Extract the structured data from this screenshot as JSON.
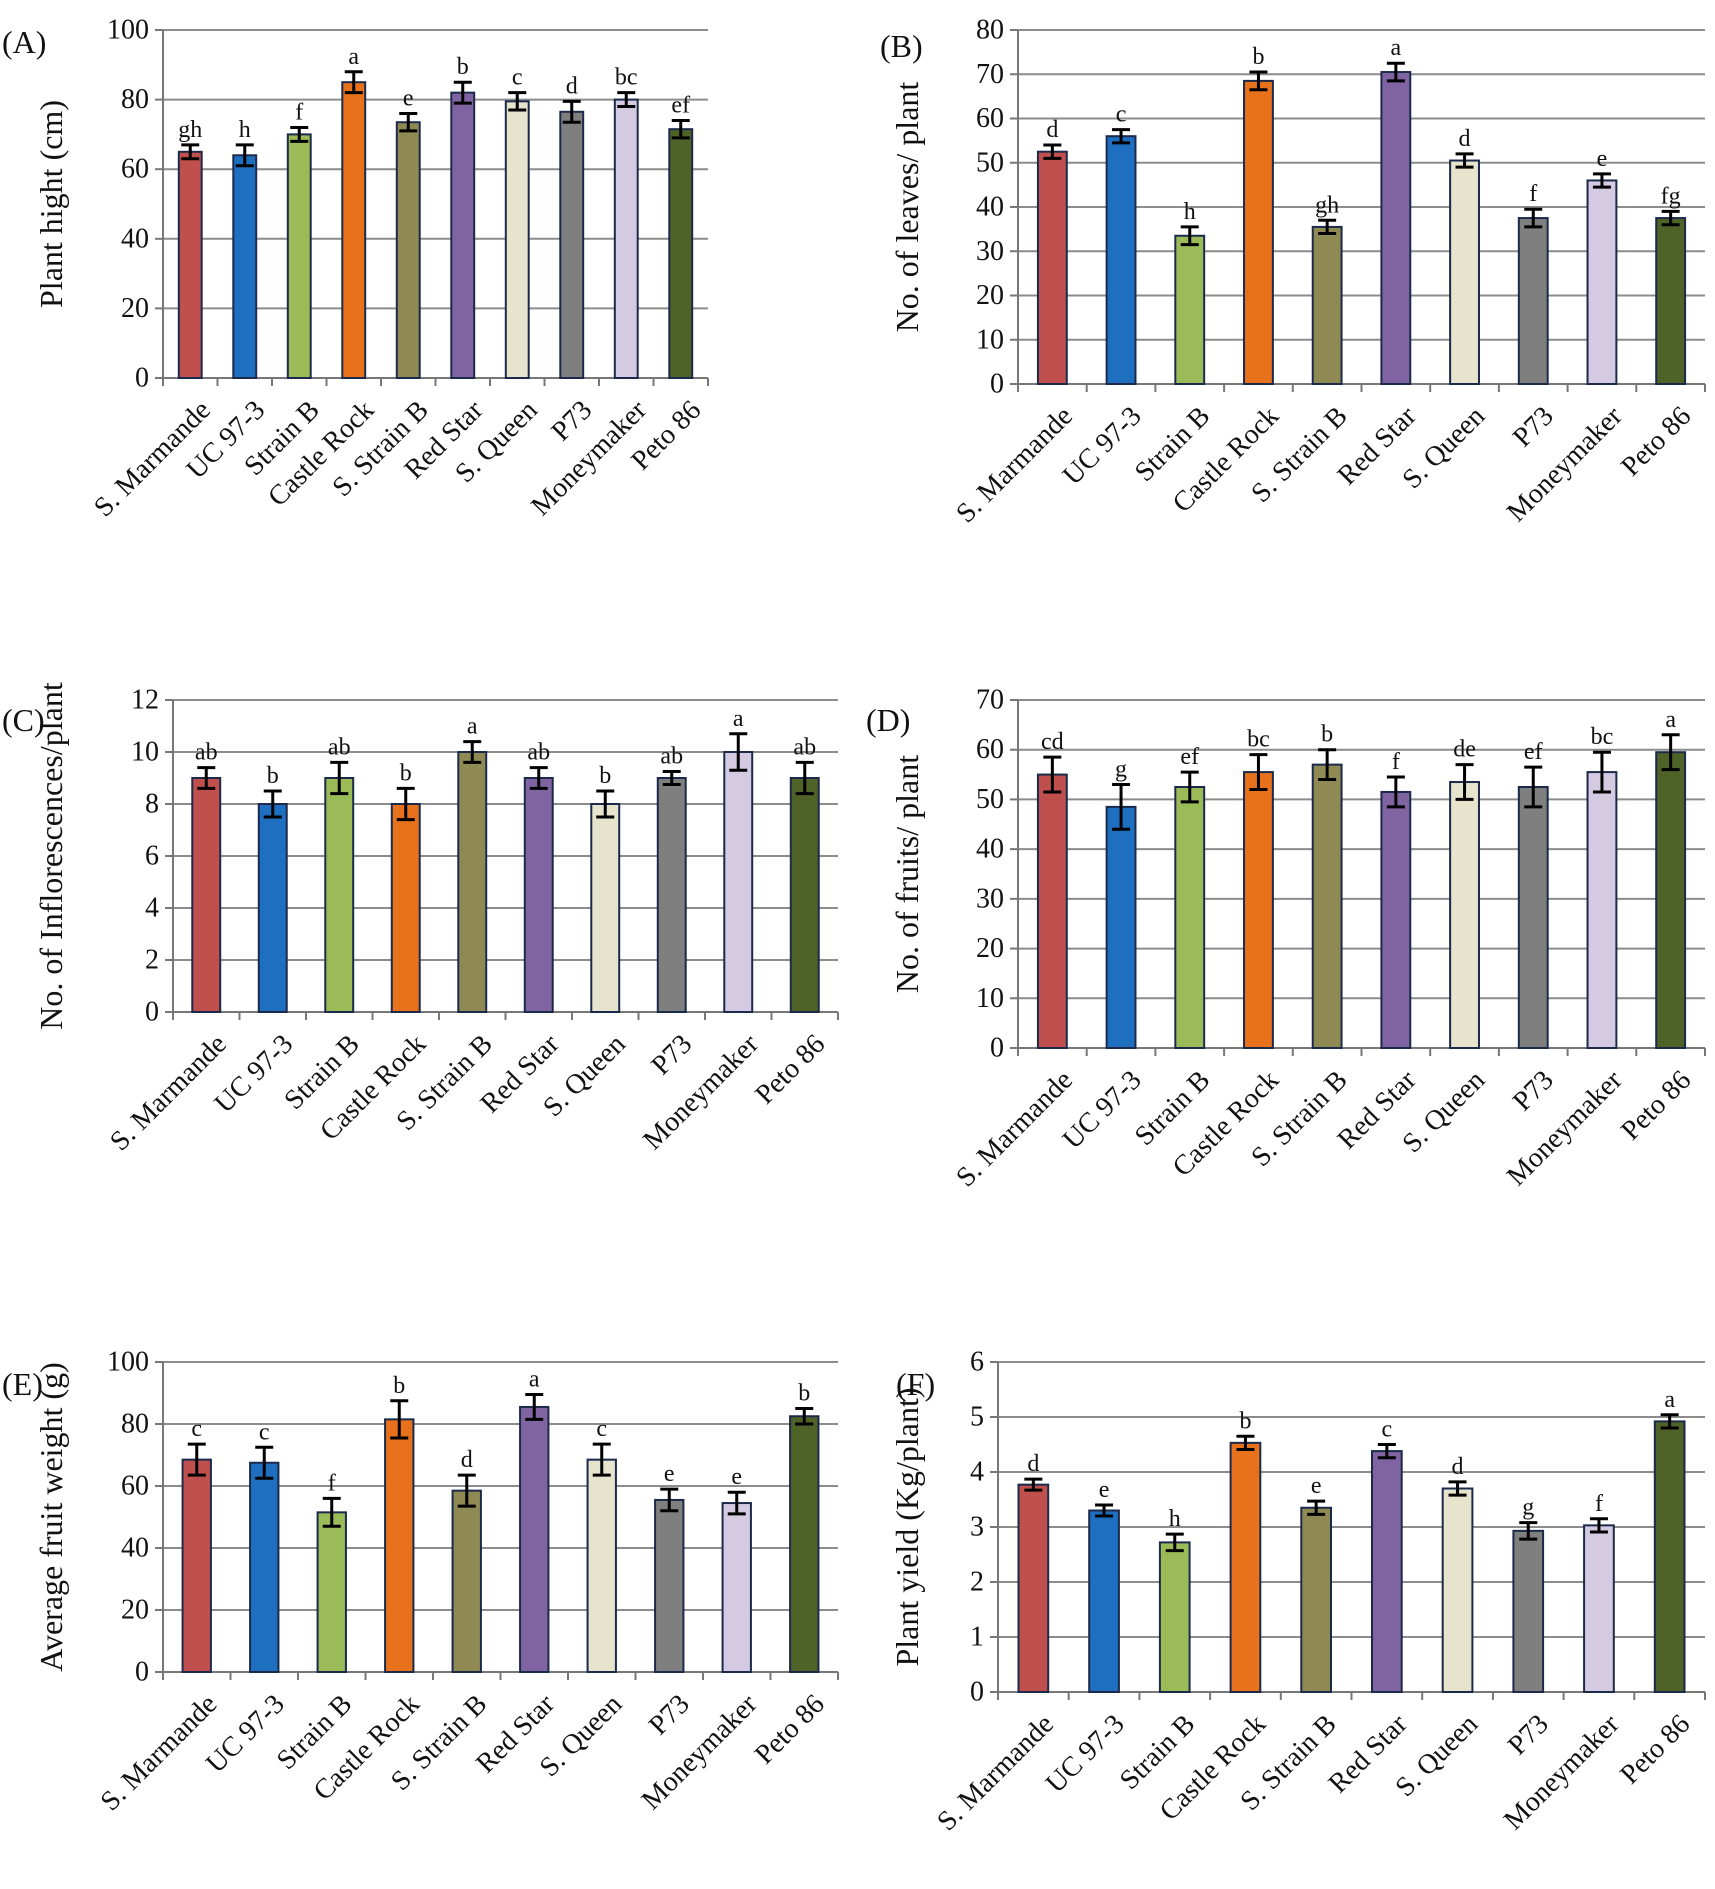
{
  "figure_title": "",
  "chart_data": [
    {
      "panel": "(A)",
      "type": "bar",
      "ylabel": "Plant hight (cm)",
      "ylim": [
        0,
        100
      ],
      "yticks": [
        0,
        20,
        40,
        60,
        80,
        100
      ],
      "grid": true,
      "categories": [
        "S. Marmande",
        "UC 97-3",
        "Strain B",
        "Castle Rock",
        "S. Strain B",
        "Red Star",
        "S. Queen",
        "P73",
        "Moneymaker",
        "Peto 86"
      ],
      "values": [
        65,
        64,
        70,
        85,
        73.5,
        82,
        79.5,
        76.5,
        80,
        71.5
      ],
      "errors": [
        2,
        3,
        2,
        3,
        2.5,
        3,
        2.5,
        3,
        2,
        2.5
      ],
      "significance": [
        "gh",
        "h",
        "f",
        "a",
        "e",
        "b",
        "c",
        "d",
        "bc",
        "ef"
      ]
    },
    {
      "panel": "(B)",
      "type": "bar",
      "ylabel": "No. of leaves/ plant",
      "ylim": [
        0,
        80
      ],
      "yticks": [
        0,
        10,
        20,
        30,
        40,
        50,
        60,
        70,
        80
      ],
      "grid": true,
      "categories": [
        "S. Marmande",
        "UC 97-3",
        "Strain B",
        "Castle Rock",
        "S. Strain B",
        "Red Star",
        "S. Queen",
        "P73",
        "Moneymaker",
        "Peto 86"
      ],
      "values": [
        52.5,
        56,
        33.5,
        68.5,
        35.5,
        70.5,
        50.5,
        37.5,
        46,
        37.5
      ],
      "errors": [
        1.5,
        1.5,
        2,
        2,
        1.5,
        2,
        1.5,
        2,
        1.5,
        1.5
      ],
      "significance": [
        "d",
        "c",
        "h",
        "b",
        "gh",
        "a",
        "d",
        "f",
        "e",
        "fg"
      ]
    },
    {
      "panel": "(C)",
      "type": "bar",
      "ylabel": "No. of Inflorescences/plant",
      "ylim": [
        0,
        12
      ],
      "yticks": [
        0,
        2,
        4,
        6,
        8,
        10,
        12
      ],
      "grid": true,
      "categories": [
        "S. Marmande",
        "UC 97-3",
        "Strain B",
        "Castle Rock",
        "S. Strain B",
        "Red Star",
        "S. Queen",
        "P73",
        "Moneymaker",
        "Peto 86"
      ],
      "values": [
        9,
        8,
        9,
        8,
        10,
        9,
        8,
        9,
        10,
        9
      ],
      "errors": [
        0.4,
        0.5,
        0.6,
        0.6,
        0.4,
        0.4,
        0.5,
        0.25,
        0.7,
        0.6
      ],
      "significance": [
        "ab",
        "b",
        "ab",
        "b",
        "a",
        "ab",
        "b",
        "ab",
        "a",
        "ab"
      ]
    },
    {
      "panel": "(D)",
      "type": "bar",
      "ylabel": "No. of fruits/ plant",
      "ylim": [
        0,
        70
      ],
      "yticks": [
        0,
        10,
        20,
        30,
        40,
        50,
        60,
        70
      ],
      "grid": true,
      "categories": [
        "S. Marmande",
        "UC 97-3",
        "Strain B",
        "Castle Rock",
        "S. Strain B",
        "Red Star",
        "S. Queen",
        "P73",
        "Moneymaker",
        "Peto 86"
      ],
      "values": [
        55,
        48.5,
        52.5,
        55.5,
        57,
        51.5,
        53.5,
        52.5,
        55.5,
        59.5
      ],
      "errors": [
        3.5,
        4.5,
        3,
        3.5,
        3,
        3,
        3.5,
        4,
        4,
        3.5
      ],
      "significance": [
        "cd",
        "g",
        "ef",
        "bc",
        "b",
        "f",
        "de",
        "ef",
        "bc",
        "a"
      ]
    },
    {
      "panel": "(E)",
      "type": "bar",
      "ylabel": "Average fruit weight (g)",
      "ylim": [
        0,
        100
      ],
      "yticks": [
        0,
        20,
        40,
        60,
        80,
        100
      ],
      "grid": true,
      "categories": [
        "S. Marmande",
        "UC 97-3",
        "Strain B",
        "Castle Rock",
        "S. Strain B",
        "Red Star",
        "S. Queen",
        "P73",
        "Moneymaker",
        "Peto 86"
      ],
      "values": [
        68.5,
        67.5,
        51.5,
        81.5,
        58.5,
        85.5,
        68.5,
        55.5,
        54.5,
        82.5
      ],
      "errors": [
        5,
        5,
        4.5,
        6,
        5,
        4,
        5,
        3.5,
        3.5,
        2.5
      ],
      "significance": [
        "c",
        "c",
        "f",
        "b",
        "d",
        "a",
        "c",
        "e",
        "e",
        "b"
      ]
    },
    {
      "panel": "(F)",
      "type": "bar",
      "ylabel": "Plant yield (Kg/plant)",
      "ylim": [
        0,
        6
      ],
      "yticks": [
        0,
        1,
        2,
        3,
        4,
        5,
        6
      ],
      "grid": true,
      "categories": [
        "S. Marmande",
        "UC 97-3",
        "Strain B",
        "Castle Rock",
        "S. Strain B",
        "Red Star",
        "S. Queen",
        "P73",
        "Moneymaker",
        "Peto 86"
      ],
      "values": [
        3.77,
        3.3,
        2.72,
        4.53,
        3.35,
        4.38,
        3.7,
        2.93,
        3.03,
        4.92
      ],
      "errors": [
        0.1,
        0.1,
        0.15,
        0.12,
        0.12,
        0.12,
        0.12,
        0.15,
        0.12,
        0.12
      ],
      "significance": [
        "d",
        "e",
        "h",
        "b",
        "e",
        "c",
        "d",
        "g",
        "f",
        "a"
      ]
    }
  ],
  "bar_colors": [
    "#c0504d",
    "#1f6fc1",
    "#9bbb59",
    "#e8711c",
    "#8f8a54",
    "#8064a2",
    "#e6e4cd",
    "#7f7f7f",
    "#d4cbe3",
    "#4f6228"
  ],
  "bar_edge_color": "#1b2a4a",
  "grid_color": "#8c8c8c",
  "axis_color": "#777777"
}
